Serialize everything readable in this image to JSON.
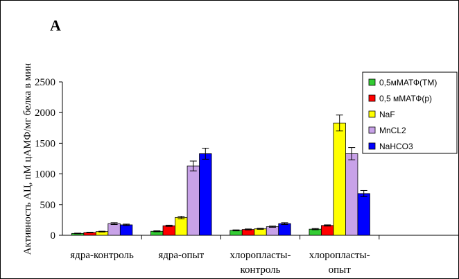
{
  "panel_label": "А",
  "chart_data": {
    "type": "bar",
    "title": "",
    "ylabel": "Активность АЦ, пМ цАМФ/мг белка в мин",
    "xlabel": "",
    "ylim": [
      0,
      2500
    ],
    "yticks": [
      0,
      500,
      1000,
      1500,
      2000,
      2500
    ],
    "grid": false,
    "legend_position": "top-right",
    "categories": [
      [
        "ядра-контроль"
      ],
      [
        "ядра-опыт"
      ],
      [
        "хлоропласты-",
        "контроль"
      ],
      [
        "хлоропласты-",
        "опыт"
      ],
      [
        ""
      ]
    ],
    "series": [
      {
        "name": "0,5мМАТФ(ТМ)",
        "color": "#33cc33",
        "values": [
          30,
          65,
          80,
          100,
          null
        ],
        "errors": [
          5,
          8,
          8,
          10,
          null
        ]
      },
      {
        "name": "0,5 мМАТФ(р)",
        "color": "#ff0000",
        "values": [
          45,
          155,
          95,
          160,
          null
        ],
        "errors": [
          5,
          10,
          8,
          10,
          null
        ]
      },
      {
        "name": "NaF",
        "color": "#ffff00",
        "values": [
          60,
          290,
          105,
          1830,
          null
        ],
        "errors": [
          6,
          20,
          8,
          130,
          null
        ]
      },
      {
        "name": "MnCL2",
        "color": "#c8a2e8",
        "values": [
          190,
          1130,
          140,
          1330,
          null
        ],
        "errors": [
          15,
          80,
          10,
          100,
          null
        ]
      },
      {
        "name": "NaHCO3",
        "color": "#0000ff",
        "values": [
          170,
          1330,
          190,
          680,
          null
        ],
        "errors": [
          12,
          90,
          15,
          50,
          null
        ]
      }
    ]
  }
}
